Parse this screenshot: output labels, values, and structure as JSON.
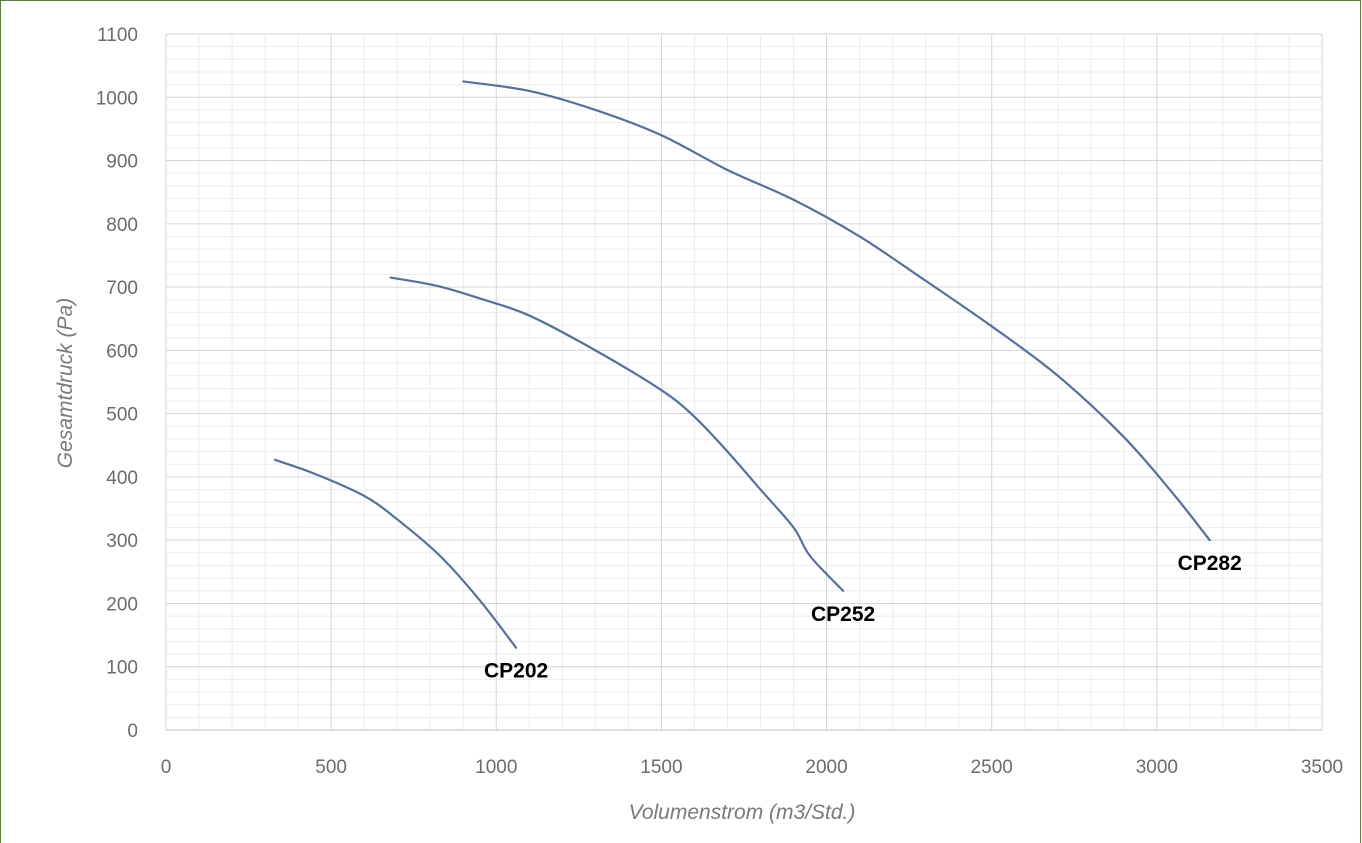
{
  "chart_data": {
    "type": "line",
    "title": "",
    "xlabel": "Volumenstrom (m3/Std.)",
    "ylabel": "Gesamtdruck (Pa)",
    "xlim": [
      0,
      3500
    ],
    "ylim": [
      0,
      1100
    ],
    "x_ticks": [
      0,
      500,
      1000,
      1500,
      2000,
      2500,
      3000,
      3500
    ],
    "y_ticks": [
      0,
      100,
      200,
      300,
      400,
      500,
      600,
      700,
      800,
      900,
      1000,
      1100
    ],
    "x_tick_labels": [
      "0",
      "500",
      "1000",
      "1500",
      "2000",
      "2500",
      "3000",
      "3500"
    ],
    "y_tick_labels": [
      "0",
      "100",
      "200",
      "300",
      "400",
      "500",
      "600",
      "700",
      "800",
      "900",
      "1000",
      "1100"
    ],
    "grid": true,
    "minor_grid": true,
    "line_color": "#5470a0",
    "series": [
      {
        "name": "CP202",
        "points": [
          [
            330,
            427
          ],
          [
            450,
            405
          ],
          [
            600,
            370
          ],
          [
            700,
            333
          ],
          [
            830,
            275
          ],
          [
            950,
            205
          ],
          [
            1060,
            130
          ]
        ]
      },
      {
        "name": "CP252",
        "points": [
          [
            680,
            715
          ],
          [
            820,
            702
          ],
          [
            950,
            682
          ],
          [
            1100,
            655
          ],
          [
            1300,
            600
          ],
          [
            1500,
            537
          ],
          [
            1600,
            495
          ],
          [
            1700,
            440
          ],
          [
            1800,
            380
          ],
          [
            1900,
            320
          ],
          [
            1950,
            275
          ],
          [
            2050,
            220
          ]
        ]
      },
      {
        "name": "CP282",
        "points": [
          [
            900,
            1025
          ],
          [
            1100,
            1010
          ],
          [
            1300,
            980
          ],
          [
            1500,
            940
          ],
          [
            1700,
            885
          ],
          [
            1900,
            838
          ],
          [
            2100,
            780
          ],
          [
            2300,
            710
          ],
          [
            2500,
            638
          ],
          [
            2700,
            560
          ],
          [
            2900,
            463
          ],
          [
            3050,
            373
          ],
          [
            3160,
            300
          ]
        ]
      }
    ]
  }
}
